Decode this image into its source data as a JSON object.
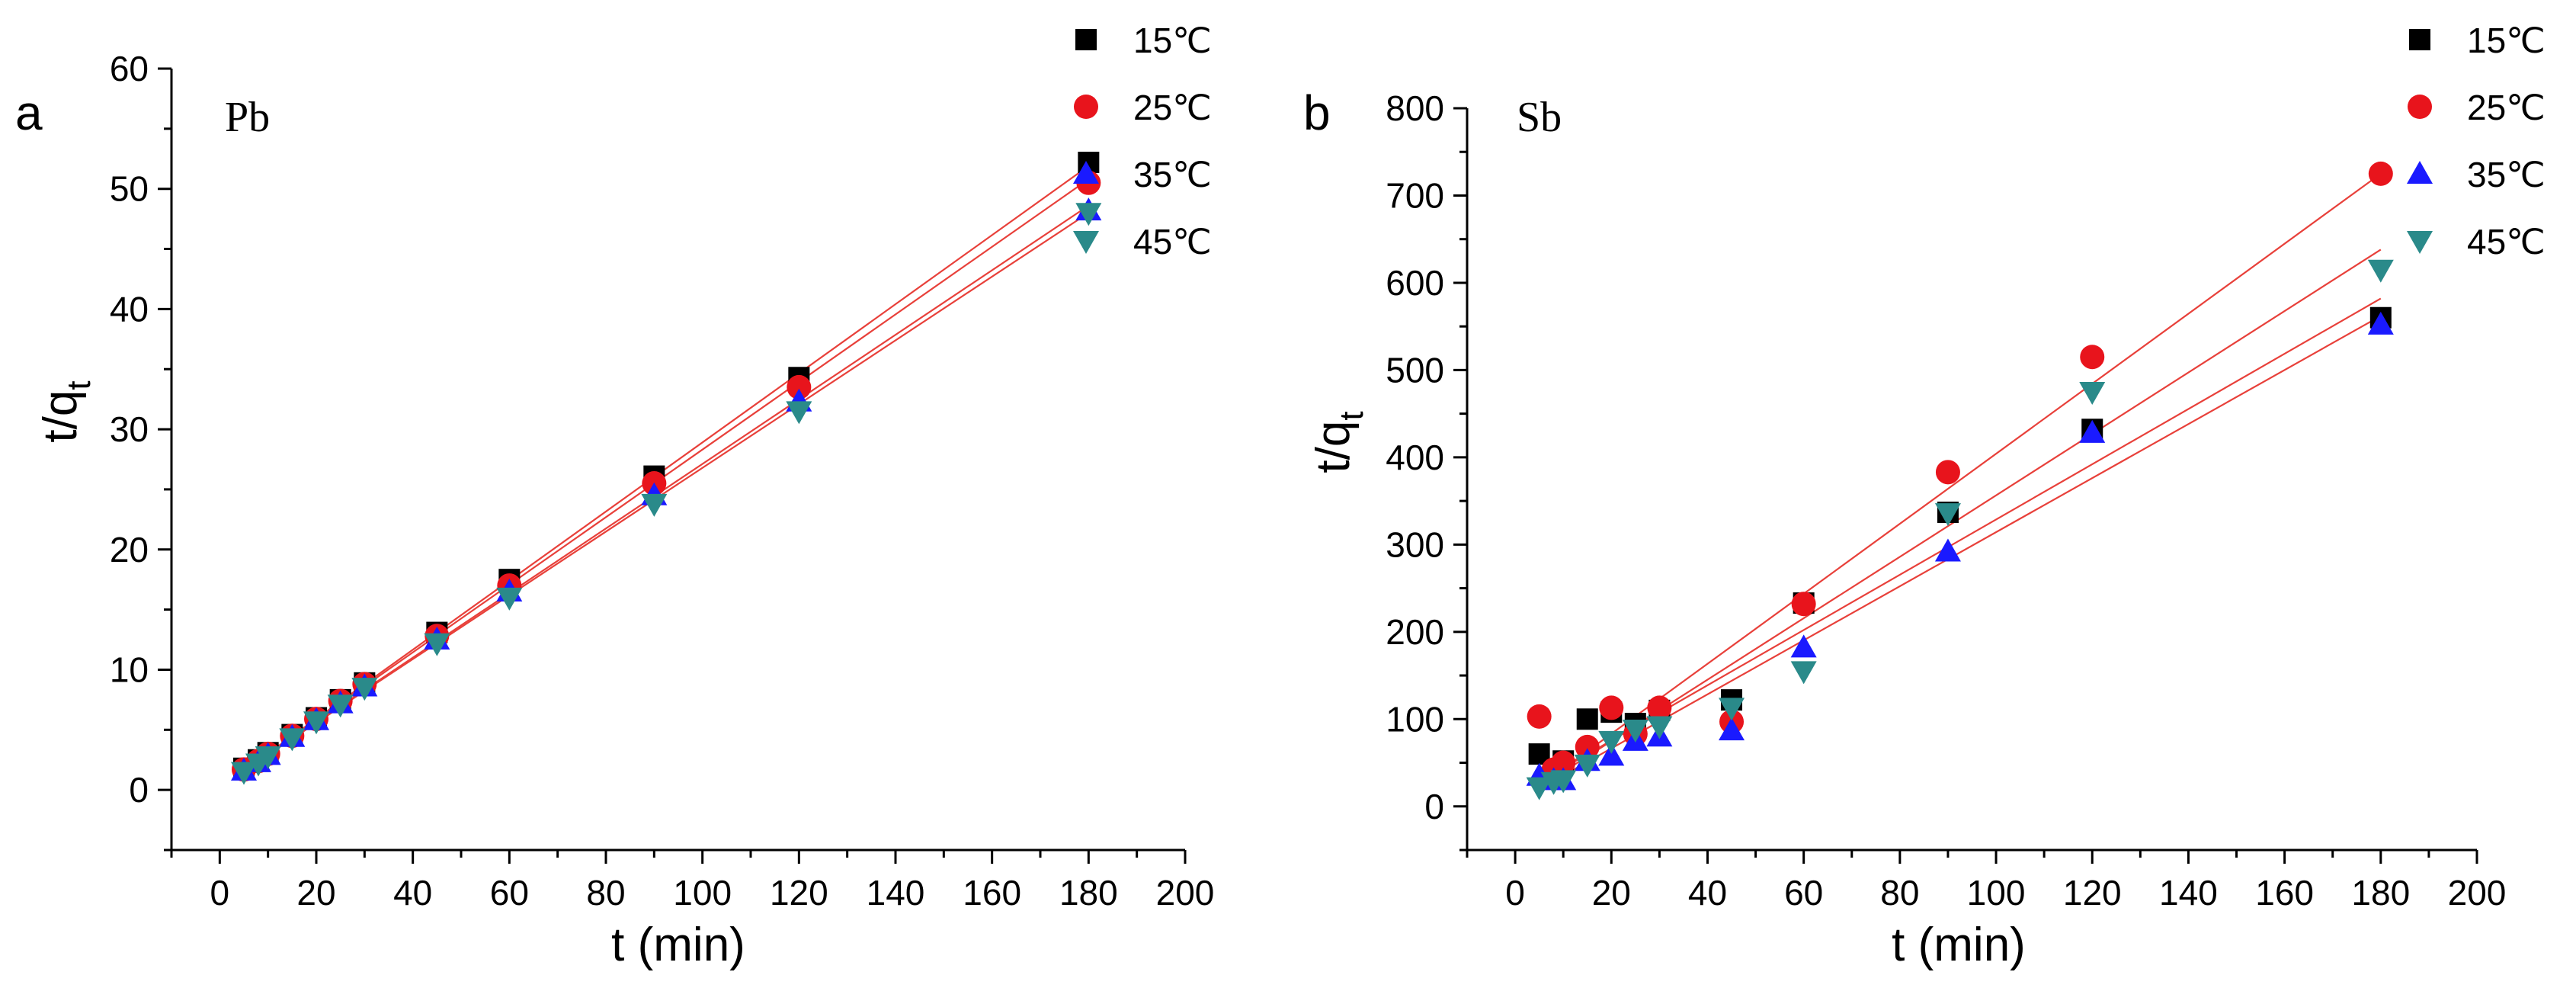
{
  "chart_data": [
    {
      "type": "scatter",
      "panel_letter": "a",
      "title": "Pb",
      "xlabel": "t (min)",
      "ylabel": "t/qt",
      "ylabel_main": "t/q",
      "ylabel_sub": "t",
      "xlim": [
        -10,
        200
      ],
      "ylim": [
        -5,
        60
      ],
      "xticks": [
        0,
        20,
        40,
        60,
        80,
        100,
        120,
        140,
        160,
        180,
        200
      ],
      "yticks": [
        0,
        10,
        20,
        30,
        40,
        50,
        60
      ],
      "fit_line_color": "#e8403a",
      "legend_position": "top-right",
      "series": [
        {
          "name": "15℃",
          "marker": "square",
          "color": "#000000",
          "x": [
            5,
            8,
            10,
            15,
            20,
            25,
            30,
            45,
            60,
            90,
            120,
            180
          ],
          "y": [
            1.8,
            2.5,
            3.1,
            4.6,
            6.0,
            7.5,
            8.9,
            13.1,
            17.5,
            26.1,
            34.3,
            52.2
          ],
          "fit": [
            [
              5,
              1.6
            ],
            [
              180,
              51.9
            ]
          ]
        },
        {
          "name": "25℃",
          "marker": "circle",
          "color": "#e8141c",
          "x": [
            5,
            8,
            10,
            15,
            20,
            25,
            30,
            45,
            60,
            90,
            120,
            180
          ],
          "y": [
            1.7,
            2.4,
            3.0,
            4.5,
            5.9,
            7.4,
            8.8,
            12.8,
            17.0,
            25.5,
            33.5,
            50.5
          ],
          "fit": [
            [
              5,
              1.6
            ],
            [
              180,
              50.8
            ]
          ]
        },
        {
          "name": "35℃",
          "marker": "triangle-up",
          "color": "#1a1aff",
          "x": [
            5,
            8,
            10,
            15,
            20,
            25,
            30,
            45,
            60,
            90,
            120,
            180
          ],
          "y": [
            1.6,
            2.3,
            2.9,
            4.4,
            5.8,
            7.2,
            8.6,
            12.5,
            16.5,
            24.5,
            32.3,
            48.2
          ],
          "fit": [
            [
              5,
              1.6
            ],
            [
              180,
              48.6
            ]
          ]
        },
        {
          "name": "45℃",
          "marker": "triangle-down",
          "color": "#2a8a8a",
          "x": [
            5,
            8,
            10,
            15,
            20,
            25,
            30,
            45,
            60,
            90,
            120,
            180
          ],
          "y": [
            1.5,
            2.2,
            2.8,
            4.3,
            5.7,
            7.1,
            8.5,
            12.2,
            16.0,
            23.8,
            31.5,
            48.0
          ],
          "fit": [
            [
              5,
              1.6
            ],
            [
              180,
              48.0
            ]
          ]
        }
      ]
    },
    {
      "type": "scatter",
      "panel_letter": "b",
      "title": "Sb",
      "xlabel": "t (min)",
      "ylabel": "t/qt",
      "ylabel_main": "t/q",
      "ylabel_sub": "t",
      "xlim": [
        -10,
        200
      ],
      "ylim": [
        -50,
        800
      ],
      "xticks": [
        0,
        20,
        40,
        60,
        80,
        100,
        120,
        140,
        160,
        180,
        200
      ],
      "yticks": [
        0,
        100,
        200,
        300,
        400,
        500,
        600,
        700,
        800
      ],
      "fit_line_color": "#e8403a",
      "legend_position": "top-right",
      "series": [
        {
          "name": "15℃",
          "marker": "square",
          "color": "#000000",
          "x": [
            5,
            10,
            15,
            20,
            25,
            30,
            45,
            60,
            90,
            120,
            180
          ],
          "y": [
            60,
            52,
            100,
            108,
            95,
            110,
            122,
            233,
            337,
            432,
            560
          ],
          "fit": [
            [
              5,
              28
            ],
            [
              180,
              582
            ]
          ]
        },
        {
          "name": "25℃",
          "marker": "circle",
          "color": "#e8141c",
          "x": [
            5,
            8,
            10,
            15,
            20,
            25,
            30,
            45,
            60,
            90,
            120,
            180
          ],
          "y": [
            103,
            42,
            50,
            68,
            113,
            83,
            113,
            97,
            232,
            383,
            515,
            725
          ],
          "fit": [
            [
              5,
              23
            ],
            [
              180,
              725
            ]
          ]
        },
        {
          "name": "35℃",
          "marker": "triangle-up",
          "color": "#1a1aff",
          "x": [
            5,
            8,
            10,
            15,
            20,
            25,
            30,
            45,
            60,
            90,
            120,
            180
          ],
          "y": [
            35,
            30,
            30,
            52,
            58,
            75,
            80,
            87,
            182,
            292,
            428,
            552
          ],
          "fit": [
            [
              5,
              20
            ],
            [
              180,
              562
            ]
          ]
        },
        {
          "name": "45℃",
          "marker": "triangle-down",
          "color": "#2a8a8a",
          "x": [
            5,
            8,
            10,
            15,
            20,
            25,
            30,
            45,
            60,
            90,
            120,
            180
          ],
          "y": [
            22,
            28,
            30,
            48,
            75,
            88,
            92,
            113,
            155,
            336,
            475,
            615
          ],
          "fit": [
            [
              5,
              22
            ],
            [
              180,
              638
            ]
          ]
        }
      ]
    }
  ]
}
